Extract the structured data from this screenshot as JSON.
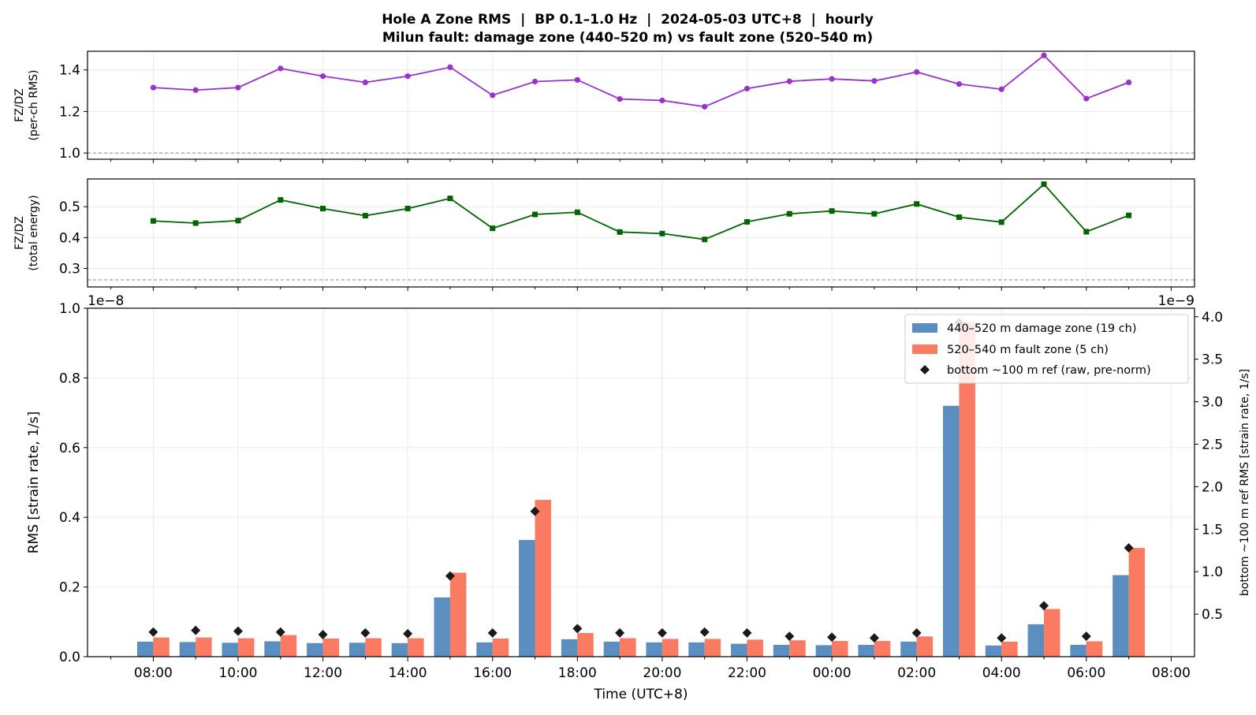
{
  "figure": {
    "title_line1": "Hole A Zone RMS  |  BP 0.1–1.0 Hz  |  2024-05-03 UTC+8  |  hourly",
    "title_line2": "Milun fault: damage zone (440–520 m) vs fault zone (520–540 m)"
  },
  "chart_data": [
    {
      "id": "ratio_perch",
      "type": "line",
      "ylabel_line1": "FZ/DZ",
      "ylabel_line2": "(per-ch RMS)",
      "ylim": [
        0.97,
        1.49
      ],
      "yticks": [
        "1.0",
        "1.2",
        "1.4"
      ],
      "ytick_values": [
        1.0,
        1.2,
        1.4
      ],
      "reference_line": 1.0,
      "color": "#9932cc",
      "marker": "circle",
      "grid": true,
      "x_hours": [
        8,
        9,
        10,
        11,
        12,
        13,
        14,
        15,
        16,
        17,
        18,
        19,
        20,
        21,
        22,
        23,
        24,
        25,
        26,
        27,
        28,
        29,
        30,
        31
      ],
      "values": [
        1.315,
        1.303,
        1.315,
        1.407,
        1.37,
        1.34,
        1.37,
        1.413,
        1.278,
        1.344,
        1.352,
        1.26,
        1.253,
        1.223,
        1.31,
        1.345,
        1.357,
        1.347,
        1.39,
        1.332,
        1.307,
        1.47,
        1.262,
        1.34
      ]
    },
    {
      "id": "ratio_energy",
      "type": "line",
      "ylabel_line1": "FZ/DZ",
      "ylabel_line2": "(total energy)",
      "ylim": [
        0.24,
        0.59
      ],
      "yticks": [
        "0.3",
        "0.4",
        "0.5"
      ],
      "ytick_values": [
        0.3,
        0.4,
        0.5
      ],
      "reference_line": 0.263,
      "color": "#006400",
      "marker": "square",
      "grid": true,
      "x_hours": [
        8,
        9,
        10,
        11,
        12,
        13,
        14,
        15,
        16,
        17,
        18,
        19,
        20,
        21,
        22,
        23,
        24,
        25,
        26,
        27,
        28,
        29,
        30,
        31
      ],
      "values": [
        0.454,
        0.447,
        0.455,
        0.522,
        0.494,
        0.471,
        0.494,
        0.527,
        0.43,
        0.475,
        0.482,
        0.418,
        0.413,
        0.394,
        0.451,
        0.477,
        0.486,
        0.477,
        0.509,
        0.466,
        0.45,
        0.573,
        0.419,
        0.472
      ]
    },
    {
      "id": "rms_bars",
      "type": "bar",
      "xlabel": "Time (UTC+8)",
      "ylabel": "RMS  [strain rate, 1/s]",
      "ylabel_right": "bottom ~100 m ref RMS  [strain rate, 1/s]",
      "offset_left": "1e−8",
      "offset_right": "1e−9",
      "ylim": [
        0,
        1.0
      ],
      "yticks": [
        "0.0",
        "0.2",
        "0.4",
        "0.6",
        "0.8",
        "1.0"
      ],
      "ytick_values": [
        0,
        0.2,
        0.4,
        0.6,
        0.8,
        1.0
      ],
      "ylim_right": [
        0,
        4.1
      ],
      "yticks_right": [
        "0.5",
        "1.0",
        "1.5",
        "2.0",
        "2.5",
        "3.0",
        "3.5",
        "4.0"
      ],
      "ytick_values_right": [
        0.5,
        1.0,
        1.5,
        2.0,
        2.5,
        3.0,
        3.5,
        4.0
      ],
      "xlim_hours": [
        6.45,
        32.55
      ],
      "xtick_hours": [
        8,
        10,
        12,
        14,
        16,
        18,
        20,
        22,
        24,
        26,
        28,
        30,
        32
      ],
      "xticks": [
        "08:00",
        "10:00",
        "12:00",
        "14:00",
        "16:00",
        "18:00",
        "20:00",
        "22:00",
        "00:00",
        "02:00",
        "04:00",
        "06:00",
        "08:00"
      ],
      "grid": true,
      "legend_position": "upper right",
      "x_hours": [
        8,
        9,
        10,
        11,
        12,
        13,
        14,
        15,
        16,
        17,
        18,
        19,
        20,
        21,
        22,
        23,
        24,
        25,
        26,
        27,
        28,
        29,
        30,
        31
      ],
      "series": [
        {
          "name": "440–520 m  damage zone (19 ch)",
          "color": "#5b8ec0",
          "values": [
            0.043,
            0.042,
            0.04,
            0.044,
            0.039,
            0.04,
            0.039,
            0.17,
            0.041,
            0.335,
            0.05,
            0.043,
            0.041,
            0.041,
            0.037,
            0.034,
            0.033,
            0.034,
            0.043,
            0.72,
            0.032,
            0.093,
            0.034,
            0.234
          ]
        },
        {
          "name": "520–540 m  fault zone (5 ch)",
          "color": "#fa7a62",
          "values": [
            0.055,
            0.055,
            0.053,
            0.062,
            0.052,
            0.053,
            0.053,
            0.241,
            0.052,
            0.45,
            0.068,
            0.053,
            0.051,
            0.051,
            0.049,
            0.047,
            0.045,
            0.045,
            0.058,
            0.96,
            0.043,
            0.137,
            0.044,
            0.312
          ]
        },
        {
          "name": "bottom ~100 m ref (raw, pre-norm)",
          "color": "#1a1a1a",
          "marker": "diamond",
          "axis": "right",
          "values": [
            0.29,
            0.31,
            0.3,
            0.29,
            0.26,
            0.28,
            0.27,
            0.95,
            0.28,
            1.71,
            0.33,
            0.28,
            0.28,
            0.29,
            0.28,
            0.24,
            0.23,
            0.22,
            0.28,
            3.93,
            0.22,
            0.6,
            0.24,
            1.28
          ]
        }
      ]
    }
  ]
}
